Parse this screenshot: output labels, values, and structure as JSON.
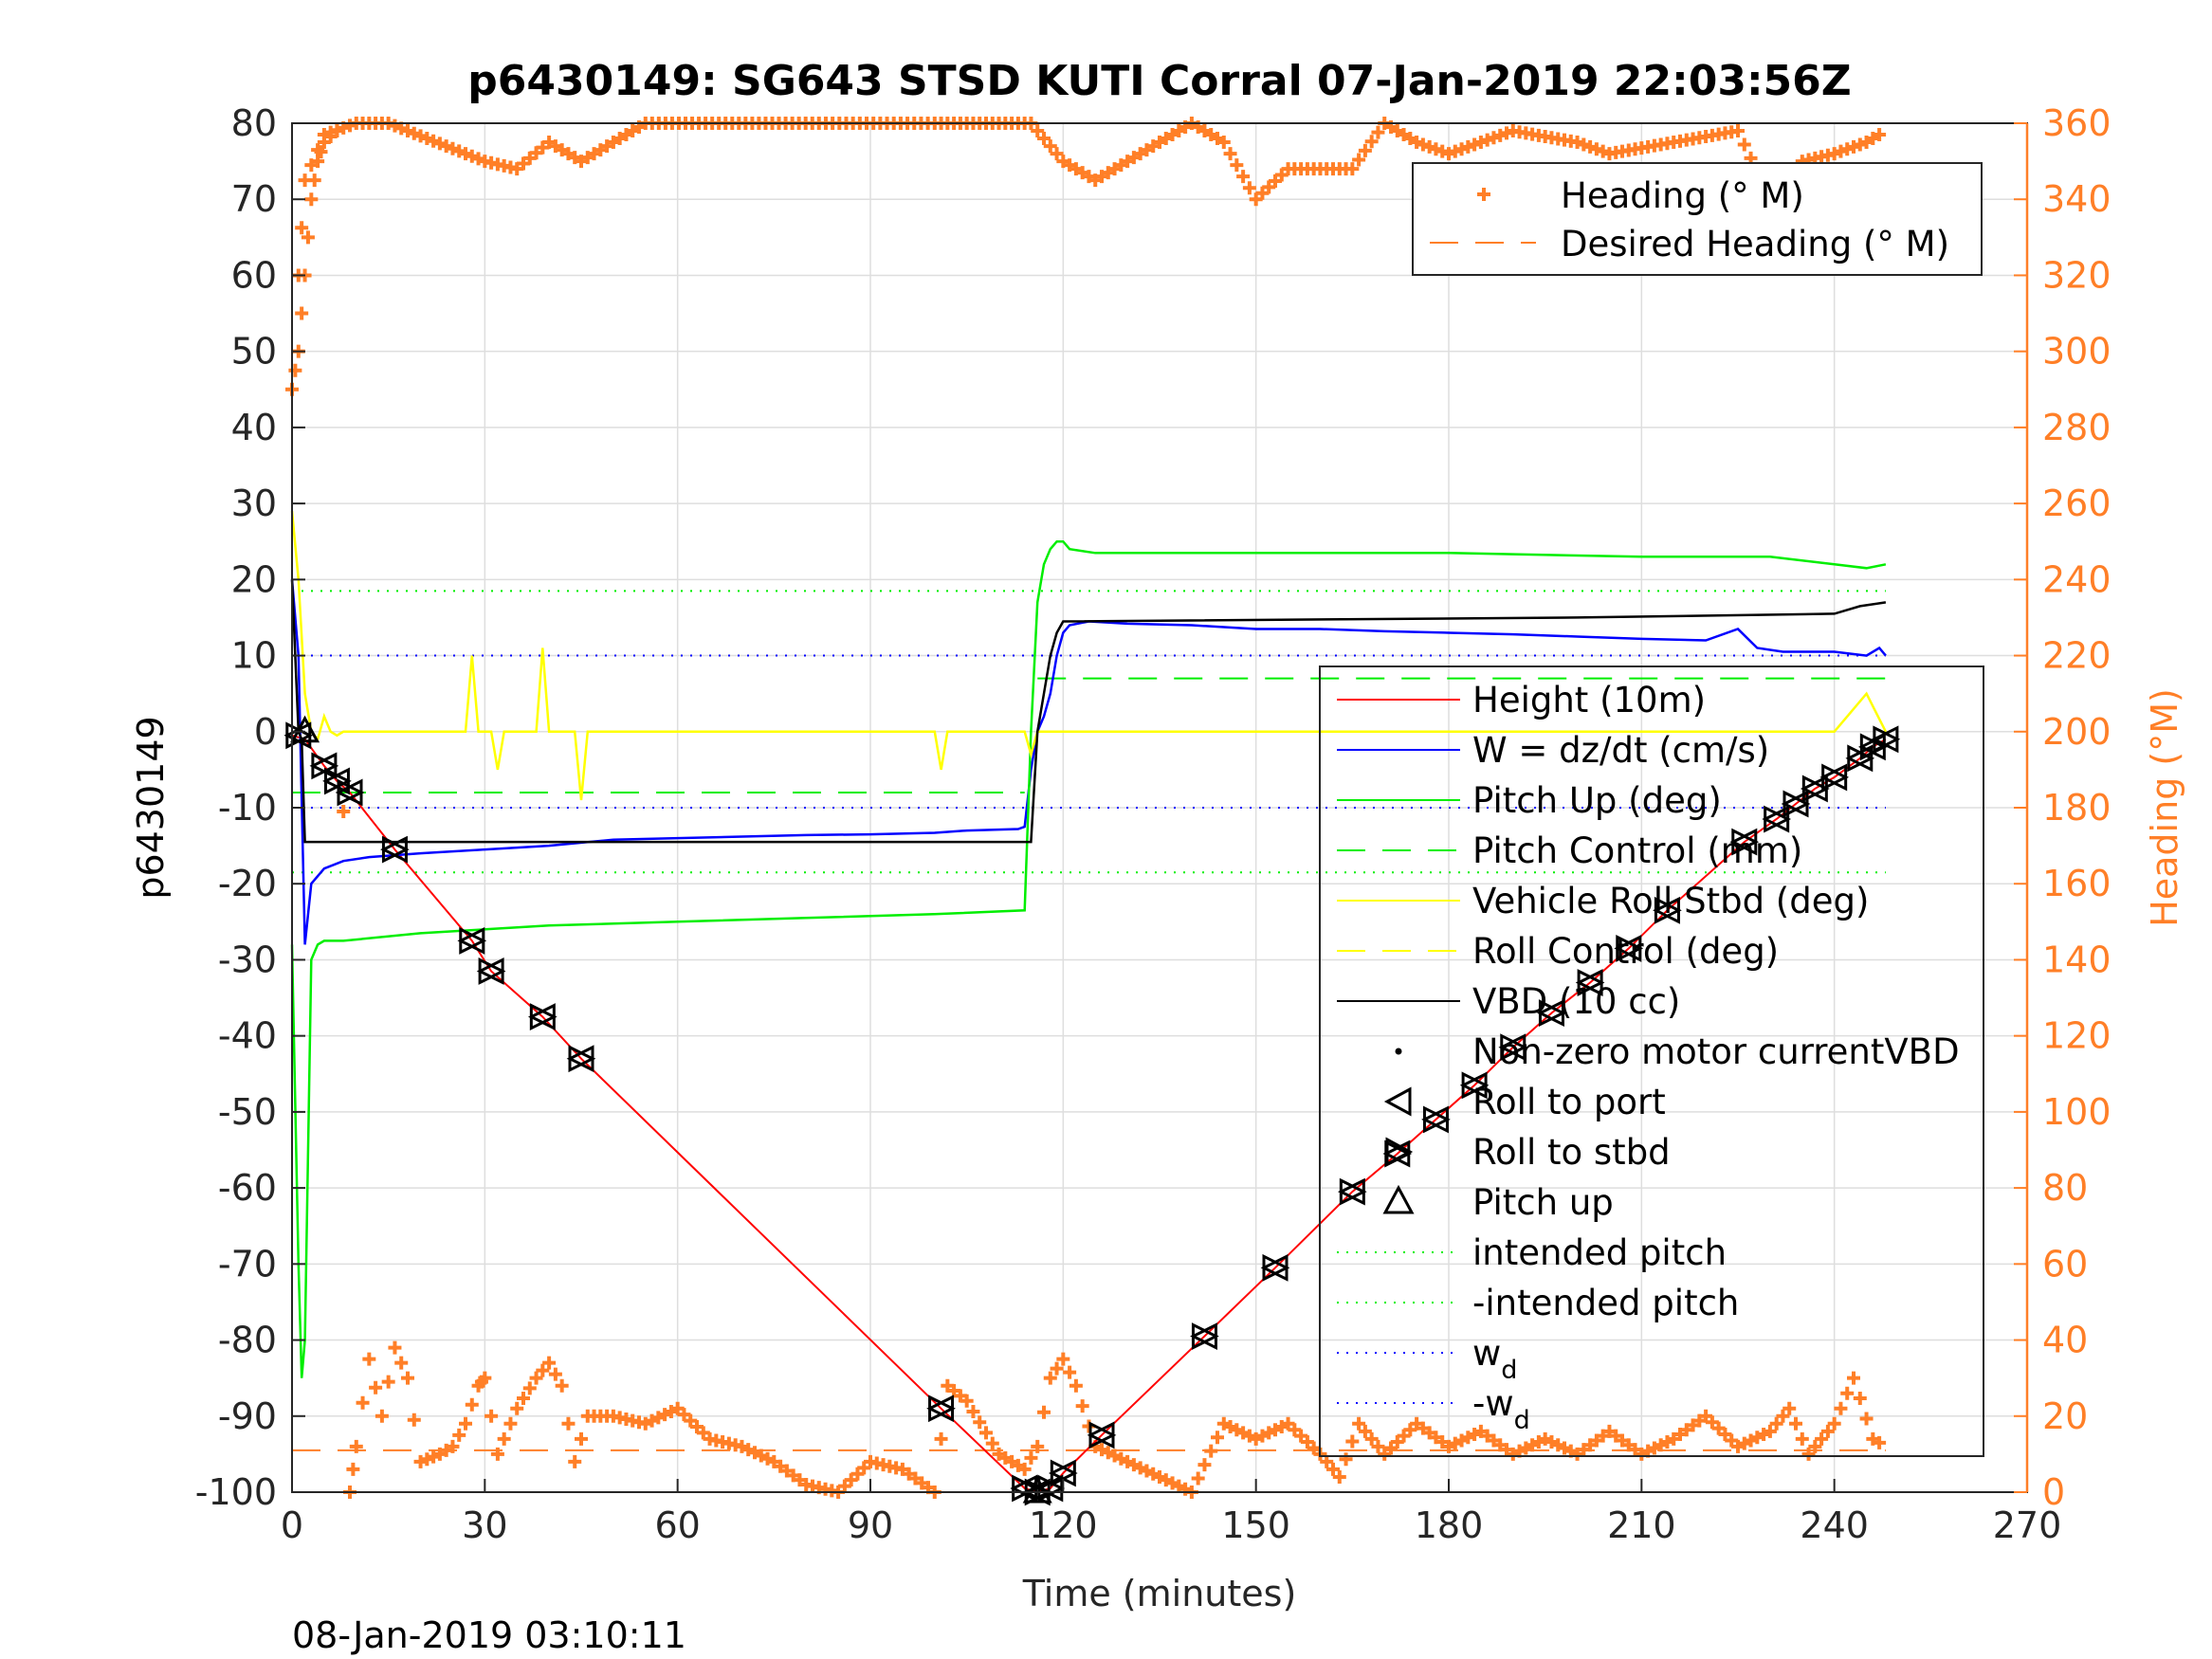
{
  "chart_data": {
    "type": "line",
    "title": "p6430149: SG643 STSD KUTI Corral 07-Jan-2019 22:03:56Z",
    "xlabel": "Time (minutes)",
    "ylabel": "p6430149",
    "y2label": "Heading (°M)",
    "footer": "08-Jan-2019 03:10:11",
    "xlim": [
      0,
      270
    ],
    "ylim": [
      -100,
      80
    ],
    "y2lim": [
      0,
      360
    ],
    "xticks": [
      0,
      30,
      60,
      90,
      120,
      150,
      180,
      210,
      240,
      270
    ],
    "yticks": [
      80,
      70,
      60,
      50,
      40,
      30,
      20,
      10,
      0,
      -10,
      -20,
      -30,
      -40,
      -50,
      -60,
      -70,
      -80,
      -90,
      -100
    ],
    "y2ticks": [
      360,
      340,
      320,
      300,
      280,
      260,
      240,
      220,
      200,
      180,
      160,
      140,
      120,
      100,
      80,
      60,
      40,
      20,
      0
    ],
    "grid": true,
    "colors": {
      "height": "#ff0000",
      "w": "#0000ff",
      "pitch": "#00ee00",
      "roll": "#ffff00",
      "vbd": "#000000",
      "heading": "#ff7f27"
    },
    "legend_heading": {
      "placement": "top-right",
      "entries": [
        "Heading (° M)",
        "Desired Heading (° M)"
      ]
    },
    "legend_main": {
      "placement": "center-right",
      "entries": [
        {
          "label": "Height (10m)",
          "style": "solid",
          "color": "#ff0000"
        },
        {
          "label": "W = dz/dt (cm/s)",
          "style": "solid",
          "color": "#0000ff"
        },
        {
          "label": "Pitch Up (deg)",
          "style": "solid",
          "color": "#00ee00"
        },
        {
          "label": "Pitch Control (mm)",
          "style": "dashed",
          "color": "#00ee00"
        },
        {
          "label": "Vehicle Roll Stbd (deg)",
          "style": "solid",
          "color": "#ffff00"
        },
        {
          "label": "Roll Control (deg)",
          "style": "dashed",
          "color": "#ffff00"
        },
        {
          "label": "VBD (10 cc)",
          "style": "solid",
          "color": "#000000"
        },
        {
          "label": "Non-zero motor currentVBD",
          "style": "dot",
          "color": "#000000"
        },
        {
          "label": "Roll to port",
          "style": "marker-left",
          "color": "#000000"
        },
        {
          "label": "Roll to stbd",
          "style": "marker-right",
          "color": "#000000"
        },
        {
          "label": "Pitch up",
          "style": "marker-up",
          "color": "#000000"
        },
        {
          "label": "intended pitch",
          "style": "dotted",
          "color": "#00ee00"
        },
        {
          "label": "-intended pitch",
          "style": "dotted",
          "color": "#00ee00"
        },
        {
          "label": "w",
          "sub": "d",
          "style": "dotted",
          "color": "#0000ff"
        },
        {
          "label": "-w",
          "sub": "d",
          "style": "dotted",
          "color": "#0000ff"
        }
      ]
    },
    "reference_lines": {
      "intended_pitch": 18.5,
      "neg_intended_pitch": -18.5,
      "w_d": 10,
      "neg_w_d": -10,
      "pitch_control_dive": -8,
      "pitch_control_climb": 7,
      "desired_heading": 11
    },
    "series": [
      {
        "name": "Height (10m)",
        "x": [
          0,
          2,
          5,
          7,
          9,
          16,
          28,
          31,
          39,
          45,
          101,
          114,
          116,
          118,
          120,
          126,
          142,
          153,
          165,
          172,
          178,
          184,
          190,
          196,
          202,
          208,
          214,
          226,
          231,
          234,
          237,
          240,
          244,
          246,
          248
        ],
        "y": [
          -0.5,
          -1,
          -4.5,
          -6.5,
          -8,
          -15.5,
          -27.5,
          -31.5,
          -37.5,
          -43,
          -89,
          -99.5,
          -100,
          -99.5,
          -97.5,
          -92.5,
          -79.5,
          -70.5,
          -60.5,
          -55.5,
          -51,
          -46.5,
          -41.5,
          -37,
          -33,
          -28.5,
          -23.5,
          -14.5,
          -11.5,
          -9.5,
          -7.5,
          -6,
          -3.5,
          -2,
          -1
        ]
      },
      {
        "name": "W = dz/dt (cm/s)",
        "x": [
          0,
          1,
          2,
          3,
          5,
          8,
          12,
          20,
          30,
          40,
          50,
          60,
          70,
          80,
          90,
          100,
          105,
          113,
          114,
          115,
          116,
          117,
          118,
          119,
          120,
          121,
          124,
          130,
          140,
          150,
          160,
          170,
          180,
          190,
          200,
          210,
          220,
          225,
          228,
          232,
          240,
          245,
          247,
          248
        ],
        "y": [
          20,
          10,
          -28,
          -20,
          -18,
          -17,
          -16.5,
          -16,
          -15.5,
          -15,
          -14.2,
          -14,
          -13.8,
          -13.6,
          -13.5,
          -13.3,
          -13,
          -12.8,
          -12.5,
          -5,
          0,
          2,
          5,
          10,
          13,
          14,
          14.5,
          14.2,
          14,
          13.5,
          13.5,
          13.2,
          13,
          12.8,
          12.5,
          12.2,
          12,
          13.5,
          11,
          10.5,
          10.5,
          10,
          11,
          10
        ]
      },
      {
        "name": "Pitch Up (deg)",
        "x": [
          0,
          1,
          1.5,
          2,
          3,
          4,
          5,
          8,
          20,
          40,
          60,
          80,
          100,
          114,
          115,
          116,
          117,
          118,
          119,
          120,
          121,
          125,
          150,
          180,
          210,
          230,
          240,
          245,
          248
        ],
        "y": [
          -28,
          -70,
          -85,
          -80,
          -30,
          -28,
          -27.5,
          -27.5,
          -26.5,
          -25.5,
          -25,
          -24.5,
          -24,
          -23.5,
          0,
          17,
          22,
          24,
          25,
          25,
          24,
          23.5,
          23.5,
          23.5,
          23,
          23,
          22,
          21.5,
          22
        ]
      },
      {
        "name": "Vehicle Roll Stbd (deg)",
        "x": [
          0,
          1,
          2,
          3,
          4,
          5,
          6,
          7,
          8,
          10,
          15,
          27,
          28,
          29,
          31,
          32,
          33,
          38,
          39,
          40,
          44,
          45,
          46,
          100,
          101,
          102,
          114,
          115,
          116,
          130,
          140,
          150,
          160,
          170,
          180,
          190,
          200,
          210,
          220,
          230,
          240,
          245,
          248
        ],
        "y": [
          29,
          20,
          5,
          0,
          -1,
          2,
          0,
          -0.5,
          0,
          0,
          0,
          0,
          10,
          0,
          0,
          -5,
          0,
          0,
          11,
          0,
          0,
          -9,
          0,
          0,
          -5,
          0,
          0,
          -3,
          0,
          0,
          0,
          0,
          0,
          0,
          0,
          0,
          0,
          0,
          0,
          0,
          0,
          5,
          0
        ]
      },
      {
        "name": "VBD (10 cc)",
        "x": [
          0,
          1,
          1.5,
          2,
          114,
          115,
          116,
          117,
          118,
          119,
          120,
          200,
          240,
          244,
          248
        ],
        "y": [
          20,
          0,
          -1,
          -14.5,
          -14.5,
          -14.5,
          0,
          5,
          10,
          13,
          14.5,
          15,
          15.5,
          16.5,
          17
        ]
      }
    ],
    "heading_series": {
      "name": "Heading (° M)",
      "note": "right axis (°M); heading trace sampled from plotted markers",
      "x": [
        0,
        1,
        2,
        3,
        4,
        5,
        7,
        9,
        10,
        12,
        14,
        16,
        18,
        20,
        23,
        25,
        27,
        29,
        30,
        32,
        35,
        38,
        40,
        42,
        44,
        46,
        50,
        55,
        60,
        65,
        70,
        75,
        80,
        85,
        90,
        95,
        100,
        102,
        105,
        110,
        114,
        116,
        118,
        120,
        122,
        125,
        130,
        135,
        140,
        145,
        150,
        155,
        160,
        163,
        166,
        170,
        175,
        180,
        185,
        190,
        195,
        200,
        205,
        210,
        215,
        220,
        225,
        230,
        233,
        236,
        240,
        243,
        246,
        248
      ],
      "y": [
        290,
        300,
        320,
        340,
        350,
        355,
        358,
        0,
        12,
        35,
        20,
        38,
        30,
        8,
        10,
        12,
        18,
        28,
        30,
        10,
        22,
        30,
        34,
        28,
        8,
        20,
        20,
        18,
        22,
        14,
        12,
        8,
        2,
        0,
        8,
        6,
        0,
        28,
        24,
        10,
        6,
        12,
        30,
        35,
        28,
        12,
        8,
        4,
        0,
        18,
        14,
        18,
        10,
        4,
        18,
        10,
        18,
        12,
        16,
        10,
        14,
        10,
        16,
        10,
        14,
        20,
        12,
        16,
        22,
        10,
        18,
        30,
        14,
        12
      ]
    },
    "heading_series_top": {
      "x": [
        1,
        2,
        5,
        10,
        15,
        30,
        35,
        40,
        45,
        55,
        82,
        100,
        115,
        120,
        125,
        140,
        145,
        150,
        155,
        165,
        170,
        175,
        180,
        190,
        200,
        205,
        215,
        225,
        230,
        233,
        235,
        240,
        245,
        248
      ],
      "y": [
        320,
        345,
        357,
        360,
        360,
        350,
        348,
        355,
        350,
        360,
        360,
        360,
        360,
        350,
        345,
        360,
        355,
        340,
        348,
        348,
        360,
        355,
        352,
        358,
        355,
        352,
        355,
        358,
        340,
        325,
        350,
        352,
        355,
        358
      ]
    },
    "markers": {
      "roll_to_port": [
        [
          1,
          -0.5
        ],
        [
          5,
          -4.5
        ],
        [
          7,
          -6.5
        ],
        [
          9,
          -8
        ],
        [
          16,
          -15.5
        ],
        [
          28,
          -27.5
        ],
        [
          31,
          -31.5
        ],
        [
          39,
          -37.5
        ],
        [
          45,
          -43
        ],
        [
          101,
          -89
        ],
        [
          114,
          -99.5
        ],
        [
          116,
          -100
        ],
        [
          118,
          -99.5
        ],
        [
          120,
          -97.5
        ],
        [
          126,
          -92.5
        ],
        [
          142,
          -79.5
        ],
        [
          153,
          -70.5
        ],
        [
          165,
          -60.5
        ],
        [
          172,
          -55.5
        ],
        [
          178,
          -51
        ],
        [
          184,
          -46.5
        ],
        [
          190,
          -41.5
        ],
        [
          196,
          -37
        ],
        [
          202,
          -33
        ],
        [
          208,
          -28.5
        ],
        [
          214,
          -23.5
        ],
        [
          226,
          -14.5
        ],
        [
          231,
          -11.5
        ],
        [
          234,
          -9.5
        ],
        [
          237,
          -7.5
        ],
        [
          240,
          -6
        ],
        [
          244,
          -3.5
        ],
        [
          246,
          -2
        ],
        [
          248,
          -1
        ]
      ],
      "roll_to_stbd": [
        [
          1,
          -0.5
        ],
        [
          5,
          -4.5
        ],
        [
          7,
          -6.5
        ],
        [
          9,
          -8
        ],
        [
          16,
          -15.5
        ],
        [
          28,
          -27.5
        ],
        [
          31,
          -31.5
        ],
        [
          39,
          -37.5
        ],
        [
          45,
          -43
        ],
        [
          101,
          -89
        ],
        [
          114,
          -99.5
        ],
        [
          116,
          -100
        ],
        [
          118,
          -99.5
        ],
        [
          120,
          -97.5
        ],
        [
          126,
          -92.5
        ],
        [
          142,
          -79.5
        ],
        [
          153,
          -70.5
        ],
        [
          165,
          -60.5
        ],
        [
          172,
          -55.5
        ],
        [
          178,
          -51
        ],
        [
          184,
          -46.5
        ],
        [
          190,
          -41.5
        ],
        [
          196,
          -37
        ],
        [
          202,
          -33
        ],
        [
          208,
          -28.5
        ],
        [
          214,
          -23.5
        ],
        [
          226,
          -14.5
        ],
        [
          231,
          -11.5
        ],
        [
          234,
          -9.5
        ],
        [
          237,
          -7.5
        ],
        [
          240,
          -6
        ],
        [
          244,
          -3.5
        ],
        [
          246,
          -2
        ],
        [
          248,
          -1
        ]
      ],
      "pitch_up": [
        [
          2,
          0
        ],
        [
          116,
          -100
        ]
      ]
    }
  }
}
